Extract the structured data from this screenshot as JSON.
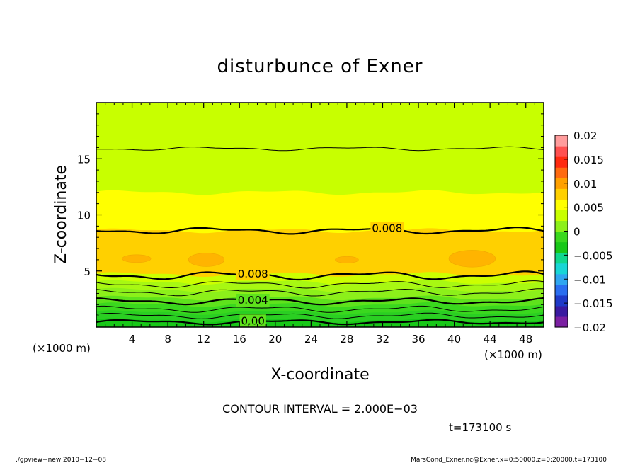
{
  "chart_data": {
    "type": "heatmap",
    "title": "disturbunce of Exner",
    "xlabel": "X-coordinate",
    "ylabel": "Z-coordinate",
    "x_unit_left": "(×1000 m)",
    "x_unit_right": "(×1000 m)",
    "xlim": [
      0,
      50
    ],
    "ylim": [
      0,
      20
    ],
    "xticks": [
      4,
      8,
      12,
      16,
      20,
      24,
      28,
      32,
      36,
      40,
      44,
      48
    ],
    "yticks": [
      5,
      10,
      15
    ],
    "colorbar": {
      "ticks": [
        0.02,
        0.015,
        0.01,
        0.005,
        0,
        -0.005,
        -0.01,
        -0.015,
        -0.02
      ],
      "tick_labels": [
        "0.02",
        "0.015",
        "0.01",
        "0.005",
        "0",
        "−0.005",
        "−0.01",
        "−0.015",
        "−0.02"
      ],
      "range": [
        -0.02,
        0.02
      ],
      "colors": [
        "#7b1fa2",
        "#3a1aa0",
        "#1f3ac8",
        "#2a6ef0",
        "#2fa6f0",
        "#18d6d6",
        "#10d88e",
        "#18c818",
        "#3ad81e",
        "#8cf01a",
        "#c8ff00",
        "#ffff00",
        "#ffd000",
        "#ffa000",
        "#ff6a10",
        "#ff2a10",
        "#ff5050",
        "#ff9c9c"
      ]
    },
    "bands": [
      {
        "z_low": 0.0,
        "z_high": 0.6,
        "color": "#18c818"
      },
      {
        "z_low": 0.6,
        "z_high": 1.3,
        "color": "#2acf22"
      },
      {
        "z_low": 1.3,
        "z_high": 2.0,
        "color": "#3ad81e"
      },
      {
        "z_low": 2.0,
        "z_high": 2.6,
        "color": "#5ee21c"
      },
      {
        "z_low": 2.6,
        "z_high": 3.3,
        "color": "#8cf01a"
      },
      {
        "z_low": 3.3,
        "z_high": 4.0,
        "color": "#a8f812"
      },
      {
        "z_low": 4.0,
        "z_high": 4.7,
        "color": "#ccff00"
      },
      {
        "z_low": 4.7,
        "z_high": 8.6,
        "color": "#ffd000"
      },
      {
        "z_low": 8.6,
        "z_high": 12.0,
        "color": "#ffff00"
      },
      {
        "z_low": 12.0,
        "z_high": 20.0,
        "color": "#c8ff00"
      }
    ],
    "contours": [
      {
        "level_label": "0.00",
        "z": 0.45,
        "amp": 0.15,
        "width": 2.2,
        "label_x": 17.5
      },
      {
        "level_label": "",
        "z": 1.0,
        "amp": 0.18,
        "width": 1,
        "label_x": null
      },
      {
        "level_label": "",
        "z": 1.6,
        "amp": 0.2,
        "width": 1,
        "label_x": null
      },
      {
        "level_label": "0.004",
        "z": 2.3,
        "amp": 0.2,
        "width": 2.2,
        "label_x": 17.5
      },
      {
        "level_label": "",
        "z": 3.1,
        "amp": 0.22,
        "width": 1,
        "label_x": null
      },
      {
        "level_label": "",
        "z": 3.8,
        "amp": 0.22,
        "width": 1,
        "label_x": null
      },
      {
        "level_label": "0.008",
        "z": 4.6,
        "amp": 0.25,
        "width": 2.2,
        "label_x": 17.5
      },
      {
        "level_label": "0.008",
        "z": 8.6,
        "amp": 0.2,
        "width": 2.2,
        "label_x": 32.5
      },
      {
        "level_label": "",
        "z": 15.9,
        "amp": 0.12,
        "width": 1,
        "label_x": null
      }
    ],
    "blobs": [
      {
        "x": 4.5,
        "z": 6.1,
        "rx": 1.6,
        "rz": 0.35
      },
      {
        "x": 12.3,
        "z": 6.0,
        "rx": 2.0,
        "rz": 0.6
      },
      {
        "x": 28.0,
        "z": 6.0,
        "rx": 1.3,
        "rz": 0.3
      },
      {
        "x": 42.0,
        "z": 6.1,
        "rx": 2.6,
        "rz": 0.75
      }
    ],
    "contour_interval": "CONTOUR INTERVAL = 2.000E−03",
    "time": "t=173100 s"
  },
  "footer": {
    "left": "./gpview−new   2010−12−08",
    "right": "MarsCond_Exner.nc@Exner,x=0:50000,z=0:20000,t=173100"
  }
}
